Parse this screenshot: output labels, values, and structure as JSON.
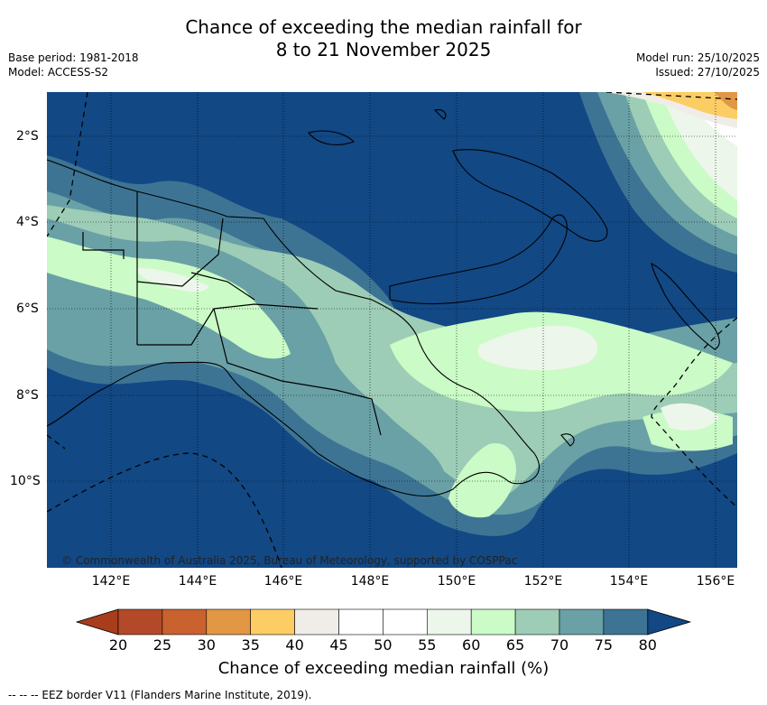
{
  "title_line1": "Chance of exceeding the median rainfall for",
  "title_line2": "8 to 21 November 2025",
  "meta_left": {
    "base_period": "Base period: 1981-2018",
    "model": "Model: ACCESS-S2"
  },
  "meta_right": {
    "model_run": "Model run: 25/10/2025",
    "issued": "Issued: 27/10/2025"
  },
  "lat_labels": [
    "2°S",
    "4°S",
    "6°S",
    "8°S",
    "10°S"
  ],
  "lon_labels": [
    "142°E",
    "144°E",
    "146°E",
    "148°E",
    "150°E",
    "152°E",
    "154°E",
    "156°E"
  ],
  "credit": "© Commonwealth of Australia 2025, Bureau of Meteorology, supported by COSPPac",
  "colorbar": {
    "labels": [
      "20",
      "25",
      "30",
      "35",
      "40",
      "45",
      "50",
      "55",
      "60",
      "65",
      "70",
      "75",
      "80"
    ],
    "colors": [
      "#a83d1c",
      "#b4492a",
      "#c9622f",
      "#e29745",
      "#fdcd65",
      "#f0ede8",
      "#ffffff",
      "#ffffff",
      "#ecf6ea",
      "#cbfbc6",
      "#9dcdb6",
      "#6aa1a6",
      "#3d7494",
      "#124884"
    ],
    "title": "Chance of exceeding median rainfall (%)"
  },
  "legend": "--  --  -- EEZ border V11 (Flanders Marine Institute, 2019)."
}
